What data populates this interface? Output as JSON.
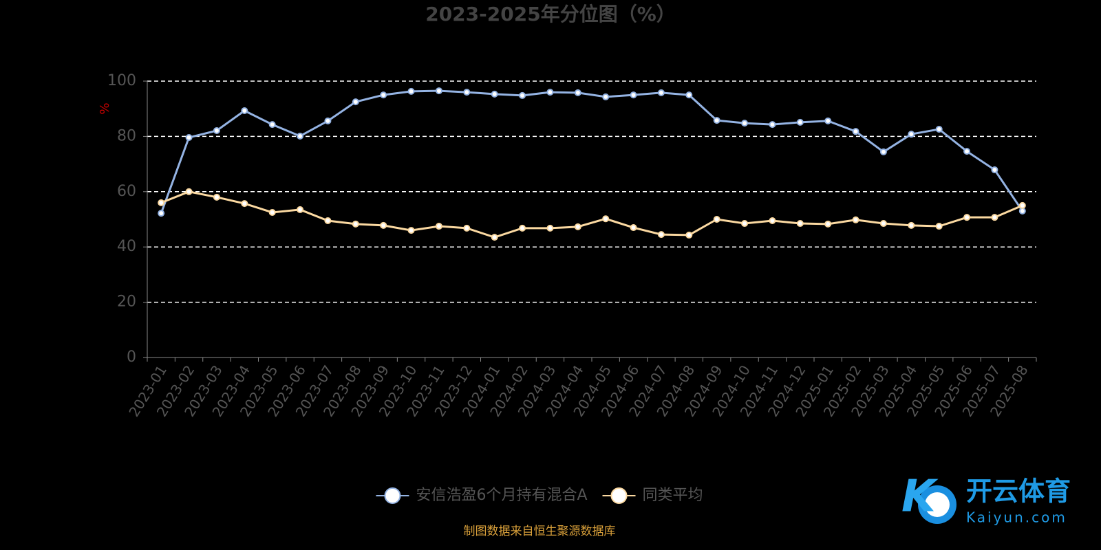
{
  "chart_data": {
    "type": "line",
    "title": "2023-2025年分位图（%）",
    "y_label": "%",
    "categories": [
      "2023-01",
      "2023-02",
      "2023-03",
      "2023-04",
      "2023-05",
      "2023-06",
      "2023-07",
      "2023-08",
      "2023-09",
      "2023-10",
      "2023-11",
      "2023-12",
      "2024-01",
      "2024-02",
      "2024-03",
      "2024-04",
      "2024-05",
      "2024-06",
      "2024-07",
      "2024-08",
      "2024-09",
      "2024-10",
      "2024-11",
      "2024-12",
      "2025-01",
      "2025-02",
      "2025-03",
      "2025-04",
      "2025-05",
      "2025-06",
      "2025-07",
      "2025-08"
    ],
    "series": [
      {
        "name": "安信浩盈6个月持有混合A",
        "color": "#94b3e3",
        "values": [
          52.2,
          79.6,
          82.1,
          89.3,
          84.3,
          80.1,
          85.6,
          92.5,
          95.0,
          96.3,
          96.5,
          96.0,
          95.3,
          94.8,
          96.0,
          95.8,
          94.3,
          95.0,
          95.8,
          95.0,
          85.8,
          84.8,
          84.3,
          85.1,
          85.6,
          81.8,
          74.4,
          80.8,
          82.6,
          74.6,
          67.9,
          53.0
        ]
      },
      {
        "name": "同类平均",
        "color": "#fbd9a1",
        "values": [
          56.0,
          60.0,
          58.0,
          55.7,
          52.5,
          53.5,
          49.5,
          48.3,
          47.8,
          46.0,
          47.5,
          46.8,
          43.5,
          46.8,
          46.8,
          47.3,
          50.2,
          47.0,
          44.5,
          44.3,
          50.0,
          48.5,
          49.5,
          48.5,
          48.3,
          49.8,
          48.5,
          47.8,
          47.5,
          50.7,
          50.7,
          55.0
        ]
      }
    ],
    "ylim": [
      0,
      100
    ],
    "yticks": [
      0,
      20,
      40,
      60,
      80,
      100
    ],
    "grid": true,
    "legend": "bottom",
    "source": "制图数据来自恒生聚源数据库"
  },
  "watermark": {
    "name": "开云体育",
    "site": "Kaiyun.com"
  }
}
